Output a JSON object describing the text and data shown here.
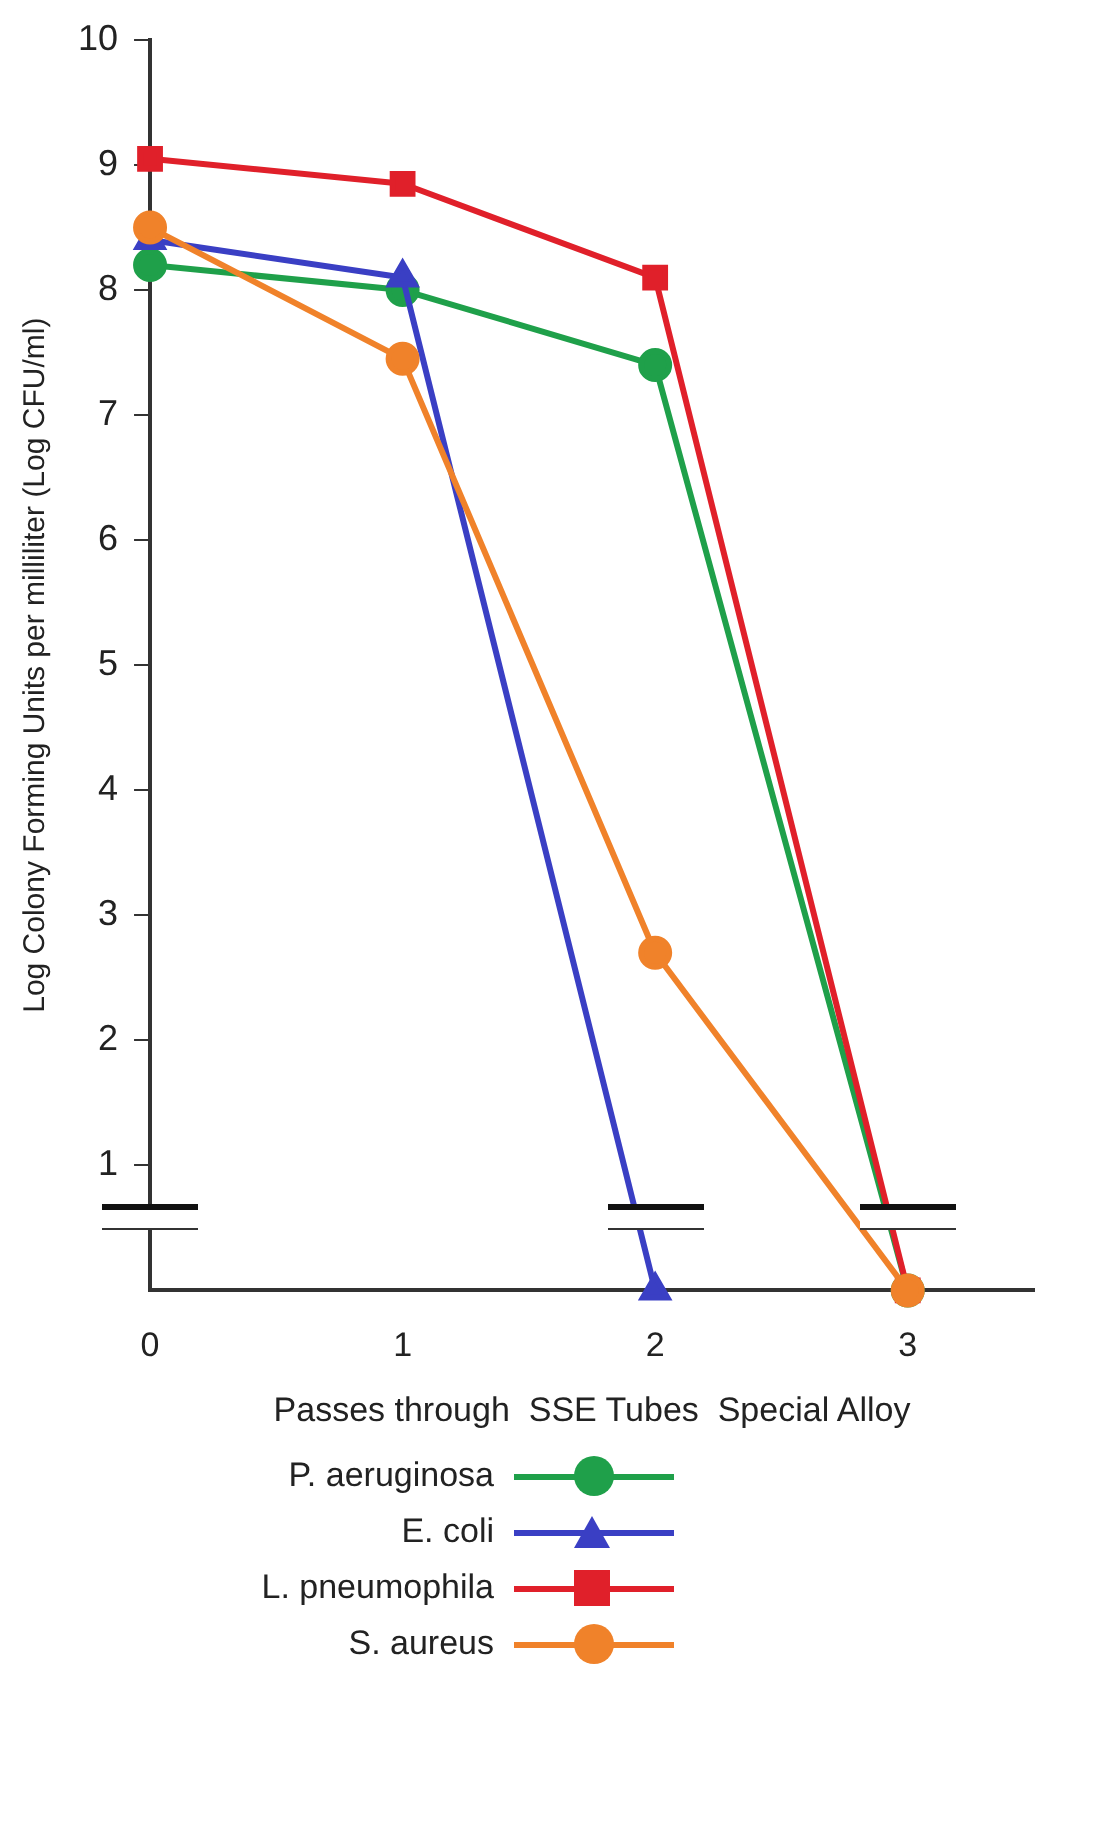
{
  "chart_data": {
    "type": "line",
    "xlabel": "Passes through  SSE Tubes  Special Alloy",
    "ylabel": "Log Colony Forming Units per milliliter (Log CFU/ml)",
    "x": [
      0,
      1,
      2,
      3
    ],
    "xlim": [
      0,
      3.5
    ],
    "xticks": [
      0,
      1,
      2,
      3
    ],
    "ylim": [
      0,
      10
    ],
    "yticks": [
      1,
      2,
      3,
      4,
      5,
      6,
      7,
      8,
      9,
      10
    ],
    "grid": false,
    "legend": "bottom",
    "line_style": "solid",
    "series": [
      {
        "name": "P. aeruginosa",
        "color": "#1fa04a",
        "marker": "circle",
        "values": [
          8.2,
          8.0,
          7.4,
          0
        ]
      },
      {
        "name": "E. coli",
        "color": "#3a3fc4",
        "marker": "triangle",
        "values": [
          8.4,
          8.1,
          0,
          null
        ]
      },
      {
        "name": "L. pneumophila",
        "color": "#e0202a",
        "marker": "square",
        "values": [
          9.05,
          8.85,
          8.1,
          0
        ]
      },
      {
        "name": "S. aureus",
        "color": "#f0822a",
        "marker": "circle",
        "values": [
          8.5,
          7.45,
          2.7,
          0
        ]
      }
    ]
  }
}
